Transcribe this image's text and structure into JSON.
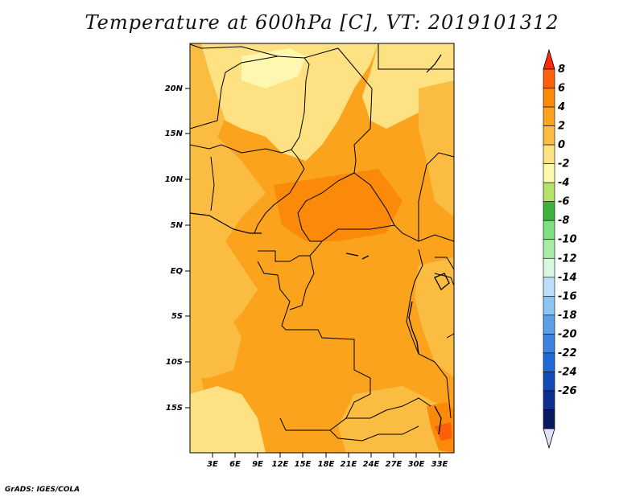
{
  "title": "Temperature at 600hPa [C], VT: 2019101312",
  "credit": "GrADS: IGES/COLA",
  "map": {
    "region": "Central Africa",
    "lon_range": [
      0,
      35
    ],
    "lat_range": [
      -20,
      25
    ],
    "lon_ticks": [
      "3E",
      "6E",
      "9E",
      "12E",
      "15E",
      "18E",
      "21E",
      "24E",
      "27E",
      "30E",
      "33E"
    ],
    "lat_ticks": [
      "20N",
      "15N",
      "10N",
      "5N",
      "EQ",
      "5S",
      "10S",
      "15S"
    ],
    "field": "temperature",
    "units": "C",
    "level": "600hPa",
    "valid_time": "2019101312"
  },
  "colorbar": {
    "levels": [
      "8",
      "6",
      "4",
      "2",
      "0",
      "-2",
      "-4",
      "-6",
      "-8",
      "-10",
      "-12",
      "-14",
      "-16",
      "-18",
      "-20",
      "-22",
      "-24",
      "-26"
    ],
    "colors": [
      "#ff2a0a",
      "#fd5f0b",
      "#fb8a0b",
      "#fba31d",
      "#fbbd41",
      "#fde182",
      "#fdf7b0",
      "#b4e36a",
      "#3cb33b",
      "#7ee07e",
      "#a7eda7",
      "#d8f7e0",
      "#bcdef9",
      "#8cc5f5",
      "#5a9fe8",
      "#3f83e0",
      "#2169d6",
      "#1549b8",
      "#0d2f8e",
      "#0a1863",
      "#e0e0f8"
    ]
  }
}
